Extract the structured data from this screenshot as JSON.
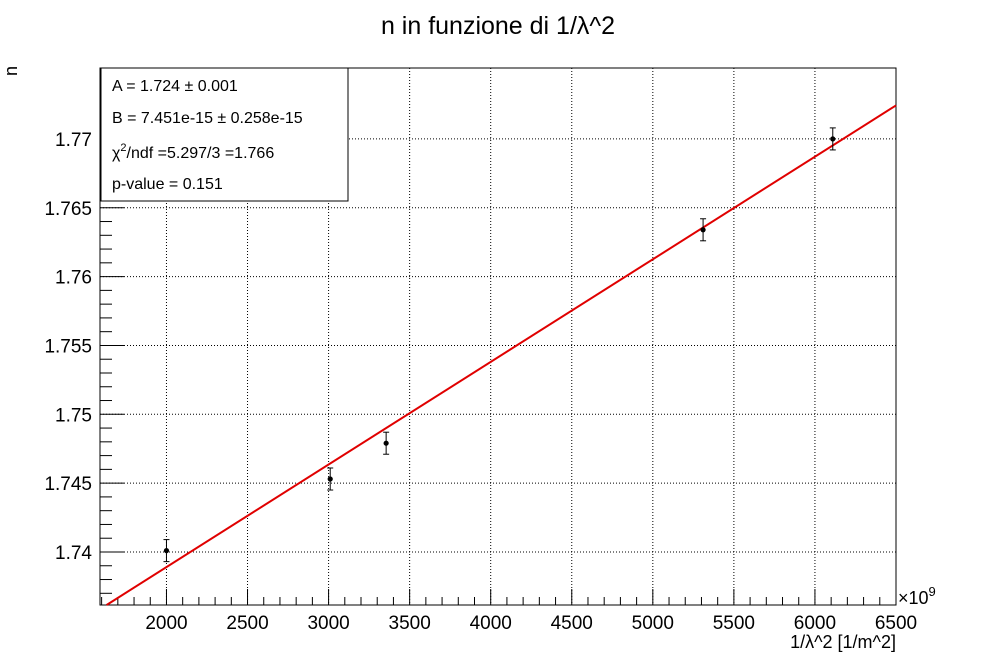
{
  "chart_data": {
    "type": "scatter",
    "title": "n in funzione di 1/λ^2",
    "xlabel": "1/λ^2 [1/m^2]",
    "ylabel": "n",
    "x_multiplier_label": "×10",
    "x_multiplier_exponent": "9",
    "xlim": [
      1590,
      6500
    ],
    "ylim": [
      1.73615,
      1.77515
    ],
    "x_ticks": [
      2000,
      2500,
      3000,
      3500,
      4000,
      4500,
      5000,
      5500,
      6000,
      6500
    ],
    "x_tick_labels": [
      "2000",
      "2500",
      "3000",
      "3500",
      "4000",
      "4500",
      "5000",
      "5500",
      "6000",
      "6500"
    ],
    "y_ticks": [
      1.74,
      1.745,
      1.75,
      1.755,
      1.76,
      1.765,
      1.77
    ],
    "y_tick_labels": [
      "1.74",
      "1.745",
      "1.75",
      "1.755",
      "1.76",
      "1.765",
      "1.77"
    ],
    "grid": true,
    "series": [
      {
        "x": [
          2000,
          3010,
          3355,
          5310,
          6110
        ],
        "y": [
          1.7401,
          1.7453,
          1.7479,
          1.7634,
          1.77
        ],
        "y_err": [
          0.0008,
          0.0008,
          0.0008,
          0.0008,
          0.0008
        ]
      }
    ],
    "fit": {
      "intercept": 1.724,
      "slope_per_unit": 0.007451,
      "x_range": [
        1590,
        6500
      ],
      "color": "#e00000"
    },
    "stats": [
      "A = 1.724 ± 0.001",
      "B = 7.451e-15 ± 0.258e-15",
      "p-value = 0.151"
    ],
    "chi2_line": {
      "chi": "χ",
      "sup": "2",
      "rest": "/ndf =5.297/3 =1.766"
    }
  }
}
